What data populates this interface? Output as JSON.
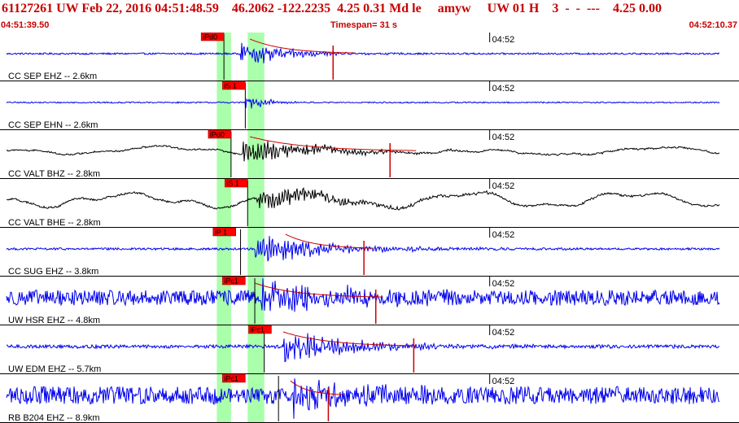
{
  "header": {
    "event_id": "61127261",
    "network": "UW",
    "origin_time": "Feb 22, 2016 04:51:48.59",
    "latitude": "46.2062",
    "longitude": "-122.2235",
    "depth": "4.25",
    "rms": "0.31",
    "magnitude_type": "Md",
    "event_type": "le",
    "analyst": "amyw",
    "source": "UW",
    "version": "01",
    "quality": "H",
    "count": "3",
    "placeholders": "-  -  ---",
    "trailing_values": "4.25 0.00"
  },
  "time_bar": {
    "start": "04:51:39.50",
    "timespan_label": "Timespan=",
    "timespan_value": "31 s",
    "end": "04:52:10.37"
  },
  "colors": {
    "header_text": "#c80000",
    "blue_trace": "#0000ee",
    "black_trace": "#000000",
    "pick_flag": "#ff0000",
    "pick_flag_light": "#ffaaaa",
    "green_window": "#aaffaa",
    "coda_curve": "#cc0000"
  },
  "chart_data": {
    "type": "line",
    "x_unit": "s",
    "xlim": [
      0,
      30.87
    ],
    "minute_tick": {
      "label": "04:52",
      "time_s": 20.5
    },
    "green_windows": [
      [
        9.0,
        9.6
      ],
      [
        10.3,
        11.0
      ]
    ],
    "traces": [
      {
        "label": "CC SEP EHZ -- 2.6km",
        "color": "blue_trace",
        "noise": 0.04,
        "wander": 0.0,
        "onset": 10.0,
        "amp": 0.55,
        "decay": 1.8,
        "flash": 9.3,
        "pick_time": 9.3,
        "pick_label": "iPd0",
        "pick_light": false,
        "coda_from": 10.4,
        "coda_to": 14.8,
        "spike": 13.9
      },
      {
        "label": "CC SEP EHN -- 2.6km",
        "color": "blue_trace",
        "noise": 0.03,
        "wander": 0.0,
        "onset": 10.2,
        "amp": 0.3,
        "decay": 0.9,
        "flash": 10.2,
        "pick_time": 10.2,
        "pick_label": "iS 1",
        "pick_light": false,
        "coda_from": null,
        "coda_to": null,
        "spike": null
      },
      {
        "label": "CC VALT BHZ -- 2.8km",
        "color": "black_trace",
        "noise": 0.03,
        "wander": 0.18,
        "onset": 10.1,
        "amp": 0.5,
        "decay": 3.0,
        "flash": 9.6,
        "pick_time": 9.6,
        "pick_label": "iPd0",
        "pick_light": false,
        "coda_from": 10.4,
        "coda_to": 17.4,
        "spike": 16.3
      },
      {
        "label": "CC VALT BHE -- 2.8km",
        "color": "black_trace",
        "noise": 0.04,
        "wander": 0.45,
        "onset": 10.7,
        "amp": 0.45,
        "decay": 3.2,
        "flash": 10.3,
        "pick_time": 10.3,
        "pick_label": "iS 1",
        "pick_light": false,
        "coda_from": null,
        "coda_to": null,
        "spike": null
      },
      {
        "label": "CC SUG EHZ -- 3.8km",
        "color": "blue_trace",
        "noise": 0.05,
        "wander": 0.0,
        "onset": 10.6,
        "amp": 0.6,
        "decay": 3.2,
        "flash": 10.0,
        "pick_time": 9.8,
        "pick_label": "iP 1",
        "pick_light": false,
        "coda_from": 11.9,
        "coda_to": 15.6,
        "spike": 15.2
      },
      {
        "label": "UW HSR EHZ -- 4.8km",
        "color": "blue_trace",
        "noise": 0.36,
        "wander": 0.0,
        "onset": 10.9,
        "amp": 0.65,
        "decay": 3.0,
        "flash": 10.6,
        "pick_time": 10.2,
        "pick_label": "iPc1",
        "pick_light": false,
        "coda_from": 10.6,
        "coda_to": 16.0,
        "spike": 15.7
      },
      {
        "label": "UW EDM EHZ -- 5.7km",
        "color": "blue_trace",
        "noise": 0.08,
        "wander": 0.0,
        "onset": 11.8,
        "amp": 0.6,
        "decay": 3.2,
        "flash": 11.0,
        "pick_time": 11.3,
        "pick_label": "iPc1",
        "pick_light": false,
        "coda_from": 11.8,
        "coda_to": 17.5,
        "spike": 17.3
      },
      {
        "label": "RB B204 EHZ -- 8.9km",
        "color": "blue_trace",
        "noise": 0.42,
        "wander": 0.0,
        "onset": 12.2,
        "amp": 0.7,
        "decay": 2.6,
        "flash": 11.6,
        "pick_time": 10.2,
        "pick_label": "iPc1",
        "pick_light": false,
        "coda_from": 12.1,
        "coda_to": 14.3,
        "spike": 13.7
      }
    ]
  }
}
